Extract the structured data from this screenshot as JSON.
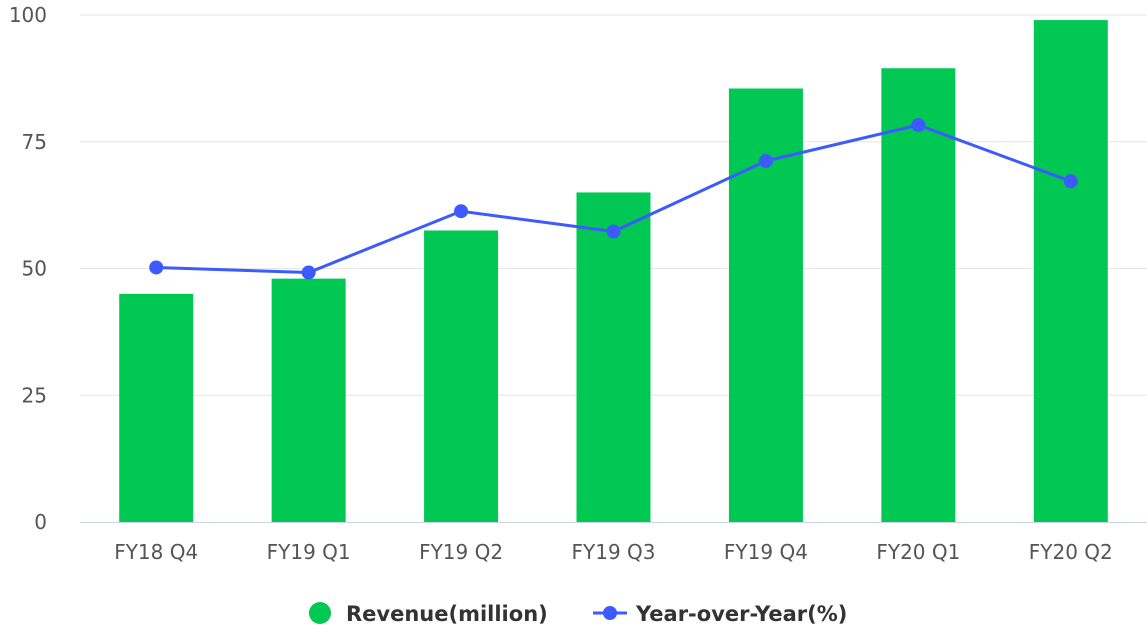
{
  "chart_data": {
    "type": "bar",
    "categories": [
      "FY18 Q4",
      "FY19 Q1",
      "FY19 Q2",
      "FY19 Q3",
      "FY19 Q4",
      "FY20 Q1",
      "FY20 Q2"
    ],
    "series": [
      {
        "name": "Revenue(million)",
        "type": "bar",
        "color": "#00c853",
        "values": [
          45,
          48,
          57.5,
          65,
          85.5,
          89.5,
          99
        ]
      },
      {
        "name": "Year-over-Year(%)",
        "type": "line",
        "color": "#3d5afe",
        "values": [
          50.2,
          49.2,
          61.3,
          57.3,
          71.2,
          78.3,
          67.2
        ]
      }
    ],
    "ylim": [
      0,
      100
    ],
    "yticks": [
      "0",
      "25",
      "50",
      "75",
      "100"
    ],
    "grid": true,
    "legend_position": "bottom-center",
    "title": "",
    "xlabel": "",
    "ylabel": ""
  }
}
